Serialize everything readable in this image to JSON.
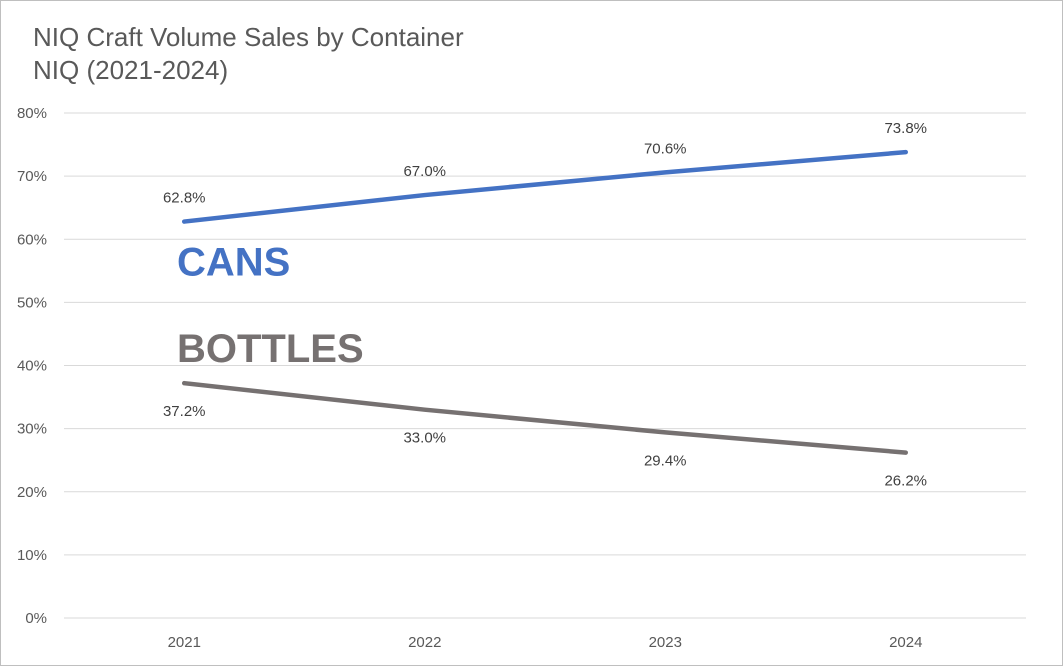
{
  "chart_data": {
    "type": "line",
    "title": "NIQ Craft Volume Sales by Container",
    "subtitle": "NIQ (2021-2024)",
    "categories": [
      "2021",
      "2022",
      "2023",
      "2024"
    ],
    "ylim": [
      0,
      80
    ],
    "yticks": [
      0,
      10,
      20,
      30,
      40,
      50,
      60,
      70,
      80
    ],
    "ytick_labels": [
      "0%",
      "10%",
      "20%",
      "30%",
      "40%",
      "50%",
      "60%",
      "70%",
      "80%"
    ],
    "grid": true,
    "xlabel": "",
    "ylabel": "",
    "series": [
      {
        "name": "CANS",
        "color": "#4472c4",
        "values": [
          62.8,
          67.0,
          70.6,
          73.8
        ],
        "labels": [
          "62.8%",
          "67.0%",
          "70.6%",
          "73.8%"
        ],
        "label_position": "above"
      },
      {
        "name": "BOTTLES",
        "color": "#767171",
        "values": [
          37.2,
          33.0,
          29.4,
          26.2
        ],
        "labels": [
          "37.2%",
          "33.0%",
          "29.4%",
          "26.2%"
        ],
        "label_position": "below"
      }
    ]
  }
}
